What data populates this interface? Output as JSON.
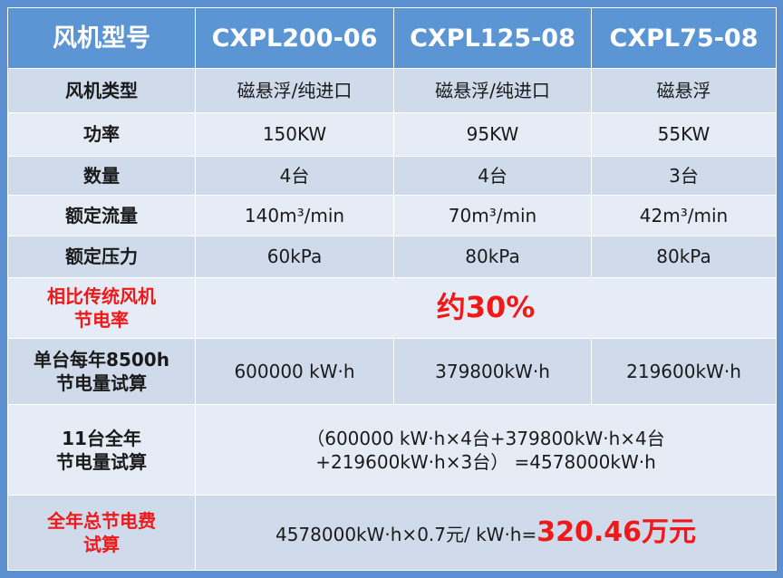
{
  "header": {
    "label": "风机型号",
    "models": [
      "CXPL200-06",
      "CXPL125-08",
      "CXPL75-08"
    ]
  },
  "rows": [
    {
      "label": "风机类型",
      "values": [
        "磁悬浮/纯进口",
        "磁悬浮/纯进口",
        "磁悬浮"
      ]
    },
    {
      "label": "功率",
      "values": [
        "150KW",
        "95KW",
        "55KW"
      ]
    },
    {
      "label": "数量",
      "values": [
        "4台",
        "4台",
        "3台"
      ]
    },
    {
      "label": "额定流量",
      "values": [
        "140m³/min",
        "70m³/min",
        "42m³/min"
      ]
    },
    {
      "label": "额定压力",
      "values": [
        "60kPa",
        "80kPa",
        "80kPa"
      ]
    }
  ],
  "saving_rate": {
    "label_line1": "相比传统风机",
    "label_line2": "节电率",
    "value": "约30%"
  },
  "per_unit": {
    "label_line1": "单台每年8500h",
    "label_line2": "节电量试算",
    "values": [
      "600000 kW·h",
      "379800kW·h",
      "219600kW·h"
    ]
  },
  "total_energy": {
    "label_line1": "11台全年",
    "label_line2": "节电量试算",
    "formula_line1": "（600000 kW·h×4台+379800kW·h×4台",
    "formula_line2": "+219600kW·h×3台） =4578000kW·h"
  },
  "total_cost": {
    "label_line1": "全年总节电费",
    "label_line2": "试算",
    "formula": "4578000kW·h×0.7元/ kW·h=",
    "result": "320.46万元"
  },
  "colors": {
    "header_bg": "#5b95d3",
    "row_dark": "#cfdbeb",
    "row_light": "#e6ecf5",
    "highlight": "#f01818"
  }
}
